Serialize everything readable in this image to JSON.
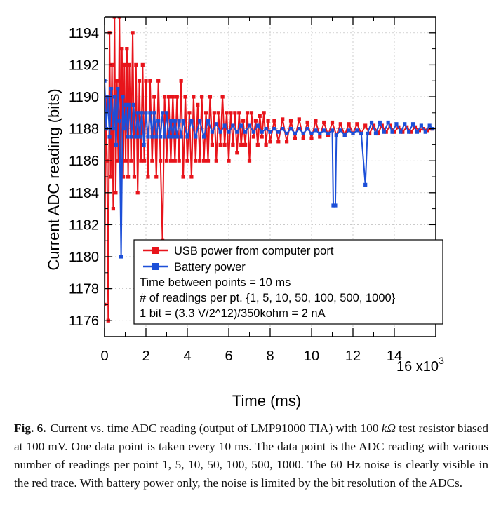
{
  "chart_data": {
    "type": "line",
    "xlabel": "Time (ms)",
    "ylabel": "Current ADC reading (bits)",
    "x_multiplier": "16 x10",
    "x_multiplier_exp": "3",
    "xlim": [
      0,
      16000
    ],
    "ylim": [
      1175,
      1195
    ],
    "x_ticks": [
      0,
      2000,
      4000,
      6000,
      8000,
      10000,
      12000,
      14000
    ],
    "x_tick_labels": [
      "0",
      "2",
      "4",
      "6",
      "8",
      "10",
      "12",
      "14"
    ],
    "y_ticks": [
      1176,
      1178,
      1180,
      1182,
      1184,
      1186,
      1188,
      1190,
      1192,
      1194
    ],
    "y_tick_labels": [
      "1176",
      "1178",
      "1180",
      "1182",
      "1184",
      "1186",
      "1188",
      "1190",
      "1192",
      "1194"
    ],
    "grid": true,
    "series": [
      {
        "name": "USB power from computer port",
        "color": "#e8141b",
        "marker": "square",
        "points": [
          [
            0,
            1177
          ],
          [
            60,
            1190
          ],
          [
            120,
            1186
          ],
          [
            180,
            1176
          ],
          [
            240,
            1194
          ],
          [
            300,
            1185
          ],
          [
            360,
            1192
          ],
          [
            420,
            1183
          ],
          [
            480,
            1195
          ],
          [
            540,
            1184
          ],
          [
            600,
            1191
          ],
          [
            660,
            1186
          ],
          [
            720,
            1195
          ],
          [
            780,
            1186
          ],
          [
            840,
            1193
          ],
          [
            900,
            1185
          ],
          [
            960,
            1192
          ],
          [
            1020,
            1186
          ],
          [
            1080,
            1193
          ],
          [
            1140,
            1185
          ],
          [
            1200,
            1192
          ],
          [
            1280,
            1186
          ],
          [
            1360,
            1194
          ],
          [
            1440,
            1185
          ],
          [
            1520,
            1192
          ],
          [
            1600,
            1184
          ],
          [
            1680,
            1191
          ],
          [
            1760,
            1186
          ],
          [
            1840,
            1192
          ],
          [
            1920,
            1186
          ],
          [
            2000,
            1191
          ],
          [
            2100,
            1185
          ],
          [
            2200,
            1191
          ],
          [
            2300,
            1186
          ],
          [
            2400,
            1190
          ],
          [
            2500,
            1185
          ],
          [
            2600,
            1191
          ],
          [
            2700,
            1186
          ],
          [
            2800,
            1181
          ],
          [
            2900,
            1190
          ],
          [
            3000,
            1186
          ],
          [
            3100,
            1190
          ],
          [
            3200,
            1186
          ],
          [
            3300,
            1190
          ],
          [
            3400,
            1186
          ],
          [
            3500,
            1190
          ],
          [
            3600,
            1186
          ],
          [
            3700,
            1191
          ],
          [
            3800,
            1185
          ],
          [
            3900,
            1190
          ],
          [
            4000,
            1186
          ],
          [
            4100,
            1189
          ],
          [
            4200,
            1185
          ],
          [
            4300,
            1190
          ],
          [
            4400,
            1186
          ],
          [
            4500,
            1189.5
          ],
          [
            4600,
            1186
          ],
          [
            4700,
            1190
          ],
          [
            4800,
            1186
          ],
          [
            4900,
            1189
          ],
          [
            5000,
            1186
          ],
          [
            5100,
            1190
          ],
          [
            5200,
            1187
          ],
          [
            5300,
            1189
          ],
          [
            5400,
            1186
          ],
          [
            5500,
            1189
          ],
          [
            5600,
            1187
          ],
          [
            5700,
            1190
          ],
          [
            5800,
            1187
          ],
          [
            5900,
            1189
          ],
          [
            6000,
            1186
          ],
          [
            6100,
            1189
          ],
          [
            6200,
            1187
          ],
          [
            6300,
            1189
          ],
          [
            6400,
            1186.5
          ],
          [
            6500,
            1189
          ],
          [
            6600,
            1187
          ],
          [
            6700,
            1188.5
          ],
          [
            6800,
            1187
          ],
          [
            6900,
            1189
          ],
          [
            7000,
            1186
          ],
          [
            7100,
            1189
          ],
          [
            7200,
            1187.5
          ],
          [
            7300,
            1188.5
          ],
          [
            7400,
            1187
          ],
          [
            7500,
            1188.8
          ],
          [
            7600,
            1187.5
          ],
          [
            7700,
            1189
          ],
          [
            7800,
            1187
          ],
          [
            7900,
            1188.5
          ],
          [
            8000,
            1187.2
          ],
          [
            8200,
            1188.5
          ],
          [
            8400,
            1187.2
          ],
          [
            8600,
            1188.6
          ],
          [
            8800,
            1187.2
          ],
          [
            9000,
            1188.5
          ],
          [
            9200,
            1187.4
          ],
          [
            9400,
            1188.6
          ],
          [
            9600,
            1187.4
          ],
          [
            9800,
            1188.4
          ],
          [
            10000,
            1187.4
          ],
          [
            10200,
            1188.5
          ],
          [
            10400,
            1187.5
          ],
          [
            10600,
            1188.4
          ],
          [
            10800,
            1187.6
          ],
          [
            11000,
            1188.4
          ],
          [
            11200,
            1187.6
          ],
          [
            11400,
            1188.3
          ],
          [
            11600,
            1187.6
          ],
          [
            11800,
            1188.3
          ],
          [
            12000,
            1187.7
          ],
          [
            12200,
            1188.3
          ],
          [
            12400,
            1187.7
          ],
          [
            12600,
            1188.2
          ],
          [
            12800,
            1187.7
          ],
          [
            13000,
            1188.2
          ],
          [
            13200,
            1187.7
          ],
          [
            13400,
            1188.2
          ],
          [
            13600,
            1187.8
          ],
          [
            13800,
            1188.2
          ],
          [
            14000,
            1187.8
          ],
          [
            14200,
            1188.1
          ],
          [
            14400,
            1187.8
          ],
          [
            14600,
            1188.1
          ],
          [
            14800,
            1187.8
          ],
          [
            15000,
            1188.1
          ],
          [
            15200,
            1187.9
          ],
          [
            15400,
            1188
          ],
          [
            15600,
            1187.9
          ],
          [
            15800,
            1188
          ]
        ]
      },
      {
        "name": "Battery power",
        "color": "#1c4fd8",
        "marker": "square",
        "points": [
          [
            0,
            1191
          ],
          [
            80,
            1188
          ],
          [
            160,
            1190
          ],
          [
            240,
            1187.5
          ],
          [
            320,
            1190.5
          ],
          [
            400,
            1188
          ],
          [
            480,
            1190
          ],
          [
            560,
            1187
          ],
          [
            640,
            1190.5
          ],
          [
            720,
            1188.5
          ],
          [
            800,
            1180
          ],
          [
            880,
            1190
          ],
          [
            960,
            1188
          ],
          [
            1040,
            1189.5
          ],
          [
            1120,
            1187.5
          ],
          [
            1200,
            1189.5
          ],
          [
            1300,
            1187.5
          ],
          [
            1400,
            1189.5
          ],
          [
            1500,
            1187.5
          ],
          [
            1600,
            1189
          ],
          [
            1700,
            1187.5
          ],
          [
            1800,
            1189
          ],
          [
            1900,
            1187
          ],
          [
            2000,
            1189
          ],
          [
            2100,
            1187.5
          ],
          [
            2200,
            1189
          ],
          [
            2300,
            1187.5
          ],
          [
            2400,
            1189
          ],
          [
            2500,
            1187.5
          ],
          [
            2600,
            1188.5
          ],
          [
            2700,
            1187.5
          ],
          [
            2800,
            1189
          ],
          [
            2900,
            1187.5
          ],
          [
            3000,
            1189
          ],
          [
            3100,
            1187.5
          ],
          [
            3200,
            1188.5
          ],
          [
            3300,
            1187.5
          ],
          [
            3400,
            1188.5
          ],
          [
            3500,
            1187.5
          ],
          [
            3600,
            1188.5
          ],
          [
            3700,
            1187.5
          ],
          [
            3800,
            1188.5
          ],
          [
            4000,
            1187.5
          ],
          [
            4200,
            1188.5
          ],
          [
            4400,
            1187.5
          ],
          [
            4600,
            1188.5
          ],
          [
            4800,
            1187.5
          ],
          [
            5000,
            1188.5
          ],
          [
            5200,
            1187.8
          ],
          [
            5400,
            1188.3
          ],
          [
            5600,
            1187.8
          ],
          [
            5800,
            1188.2
          ],
          [
            6000,
            1187.8
          ],
          [
            6200,
            1188.2
          ],
          [
            6400,
            1187.8
          ],
          [
            6600,
            1188.2
          ],
          [
            6800,
            1187.8
          ],
          [
            7000,
            1188.2
          ],
          [
            7200,
            1187.8
          ],
          [
            7400,
            1188.2
          ],
          [
            7600,
            1187.8
          ],
          [
            7800,
            1188
          ],
          [
            8000,
            1187.8
          ],
          [
            8200,
            1188
          ],
          [
            8400,
            1187.8
          ],
          [
            8600,
            1188
          ],
          [
            8800,
            1187.7
          ],
          [
            9000,
            1188
          ],
          [
            9200,
            1187.7
          ],
          [
            9400,
            1188
          ],
          [
            9600,
            1187.7
          ],
          [
            9800,
            1188
          ],
          [
            10000,
            1187.7
          ],
          [
            10200,
            1187.9
          ],
          [
            10400,
            1187.7
          ],
          [
            10600,
            1187.9
          ],
          [
            10800,
            1187.7
          ],
          [
            11000,
            1187.9
          ],
          [
            11050,
            1183.2
          ],
          [
            11150,
            1183.2
          ],
          [
            11200,
            1187.6
          ],
          [
            11400,
            1187.9
          ],
          [
            11600,
            1187.6
          ],
          [
            11800,
            1187.9
          ],
          [
            12000,
            1187.7
          ],
          [
            12200,
            1187.9
          ],
          [
            12400,
            1187.7
          ],
          [
            12600,
            1184.5
          ],
          [
            12700,
            1187.7
          ],
          [
            12900,
            1188.4
          ],
          [
            13100,
            1187.7
          ],
          [
            13300,
            1188.4
          ],
          [
            13500,
            1187.8
          ],
          [
            13700,
            1188.4
          ],
          [
            13900,
            1187.8
          ],
          [
            14100,
            1188.3
          ],
          [
            14300,
            1187.8
          ],
          [
            14500,
            1188.3
          ],
          [
            14700,
            1187.8
          ],
          [
            14900,
            1188.3
          ],
          [
            15100,
            1187.8
          ],
          [
            15300,
            1188.2
          ],
          [
            15500,
            1187.8
          ],
          [
            15700,
            1188.2
          ],
          [
            15850,
            1188
          ]
        ]
      }
    ],
    "legend": {
      "placement": "bottom-right",
      "notes": [
        "Time between points = 10 ms",
        "# of readings per pt. {1, 5, 10, 50, 100, 500, 1000}",
        "1 bit = (3.3 V/2^12)/350kohm = 2 nA"
      ]
    }
  },
  "caption": {
    "label": "Fig. 6.",
    "text_before_unit": "Current vs. time ADC reading (output of LMP91000 TIA) with 100 ",
    "unit": "kΩ",
    "text_after_unit": " test resistor biased at 100 mV. One data point is taken every 10 ms. The data point is the ADC reading with various number of readings per point 1, 5, 10, 50, 100, 500, 1000. The 60 Hz noise is clearly visible in the red trace. With battery power only, the noise is limited by the bit resolution of the ADCs."
  }
}
